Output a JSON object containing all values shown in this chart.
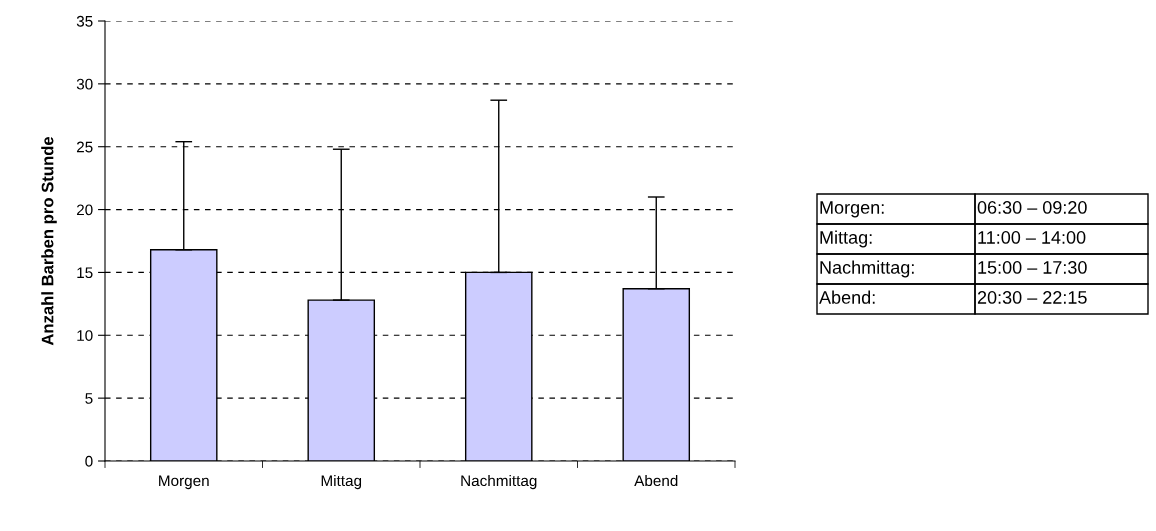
{
  "chart_data": {
    "type": "bar",
    "ylabel": "Anzahl Barben pro Stunde",
    "categories": [
      "Morgen",
      "Mittag",
      "Nachmittag",
      "Abend"
    ],
    "series": [
      {
        "color": "#ccccff",
        "values": [
          16.8,
          12.8,
          15.0,
          13.7
        ],
        "errors": [
          [
            16.8,
            25.4
          ],
          [
            12.8,
            24.8
          ],
          [
            15.0,
            28.7
          ],
          [
            13.7,
            21.0
          ]
        ]
      }
    ],
    "ylim": [
      0,
      35
    ],
    "yticks": [
      0,
      5,
      10,
      15,
      20,
      25,
      30,
      35
    ],
    "grid": "y",
    "line_style": "dashed",
    "legend": false,
    "annotations": [
      "Morgen:",
      "06:30 – 09:20",
      "Mittag:",
      "11:00 – 14:00",
      "Nachmittag:",
      "15:00 – 17:30",
      "Abend:",
      "20:30 – 22:15"
    ]
  }
}
